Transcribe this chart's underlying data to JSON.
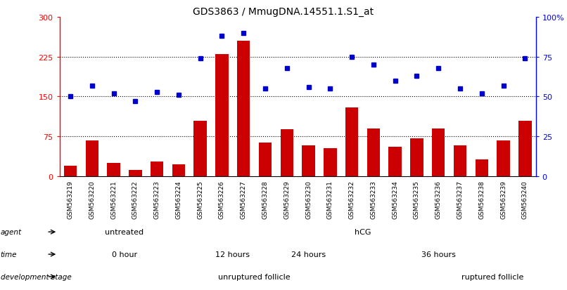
{
  "title": "GDS3863 / MmugDNA.14551.1.S1_at",
  "samples": [
    "GSM563219",
    "GSM563220",
    "GSM563221",
    "GSM563222",
    "GSM563223",
    "GSM563224",
    "GSM563225",
    "GSM563226",
    "GSM563227",
    "GSM563228",
    "GSM563229",
    "GSM563230",
    "GSM563231",
    "GSM563232",
    "GSM563233",
    "GSM563234",
    "GSM563235",
    "GSM563236",
    "GSM563237",
    "GSM563238",
    "GSM563239",
    "GSM563240"
  ],
  "counts": [
    20,
    68,
    25,
    12,
    28,
    22,
    105,
    230,
    255,
    63,
    88,
    58,
    53,
    130,
    90,
    55,
    72,
    90,
    58,
    32,
    68,
    105
  ],
  "percentiles": [
    50,
    57,
    52,
    47,
    53,
    51,
    74,
    88,
    90,
    55,
    68,
    56,
    55,
    75,
    70,
    60,
    63,
    68,
    55,
    52,
    57,
    74
  ],
  "bar_color": "#cc0000",
  "dot_color": "#0000cc",
  "ylim_left": [
    0,
    300
  ],
  "ylim_right": [
    0,
    100
  ],
  "yticks_left": [
    0,
    75,
    150,
    225,
    300
  ],
  "yticks_right": [
    0,
    25,
    50,
    75,
    100
  ],
  "ytick_labels_left": [
    "0",
    "75",
    "150",
    "225",
    "300"
  ],
  "ytick_labels_right": [
    "0",
    "25",
    "50",
    "75",
    "100%"
  ],
  "hlines": [
    75,
    150,
    225
  ],
  "color_light_green": "#aaddaa",
  "color_green": "#66cc66",
  "color_light_purple": "#ccccee",
  "color_purple1": "#aaaadd",
  "color_purple2": "#9999cc",
  "color_purple3": "#7b68ee",
  "color_light_pink": "#ffcccc",
  "color_pink": "#ee8888",
  "color_gray_bg": "#cccccc"
}
